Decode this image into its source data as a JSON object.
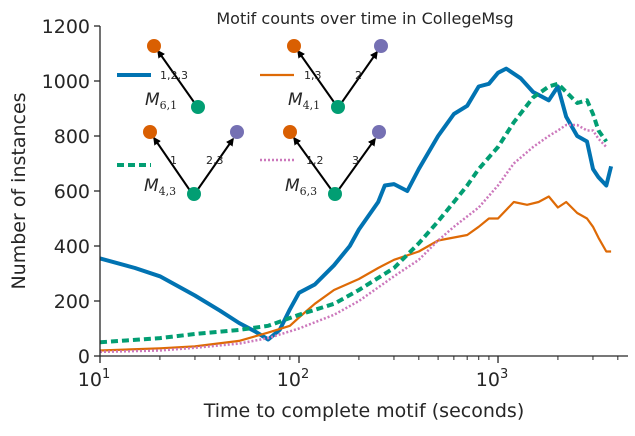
{
  "chart_data": {
    "type": "line",
    "title": "Motif counts over time in CollegeMsg",
    "xlabel": "Time to complete motif (seconds)",
    "ylabel": "Number of instances",
    "xscale": "log",
    "xlim": [
      10,
      4500
    ],
    "ylim": [
      0,
      1200
    ],
    "xticks": [
      {
        "value": 10,
        "base": "10",
        "exp": "1"
      },
      {
        "value": 100,
        "base": "10",
        "exp": "2"
      },
      {
        "value": 1000,
        "base": "10",
        "exp": "3"
      }
    ],
    "yticks": [
      "0",
      "200",
      "400",
      "600",
      "800",
      "1000",
      "1200"
    ],
    "grid": false,
    "legend": "upper-left, motif diagrams",
    "series": [
      {
        "name": "M6,1",
        "color": "#0173b2",
        "style": "solid",
        "width": 4,
        "x": [
          10,
          15,
          20,
          30,
          40,
          50,
          60,
          70,
          80,
          90,
          100,
          120,
          150,
          180,
          200,
          250,
          270,
          300,
          350,
          400,
          500,
          600,
          700,
          800,
          900,
          1000,
          1100,
          1300,
          1500,
          1800,
          2000,
          2200,
          2500,
          2800,
          3000,
          3200,
          3500,
          3700
        ],
        "y": [
          355,
          320,
          290,
          220,
          165,
          120,
          90,
          60,
          95,
          170,
          230,
          260,
          330,
          400,
          460,
          560,
          620,
          625,
          600,
          680,
          800,
          880,
          910,
          980,
          990,
          1030,
          1045,
          1010,
          960,
          930,
          980,
          870,
          800,
          780,
          680,
          650,
          620,
          690
        ]
      },
      {
        "name": "M4,1",
        "color": "#de6a06",
        "style": "solid",
        "width": 2.2,
        "x": [
          10,
          20,
          30,
          50,
          70,
          90,
          100,
          120,
          150,
          200,
          250,
          300,
          400,
          500,
          700,
          800,
          900,
          1000,
          1200,
          1400,
          1600,
          1800,
          2000,
          2200,
          2500,
          2800,
          3000,
          3200,
          3500,
          3700
        ],
        "y": [
          20,
          28,
          35,
          55,
          85,
          110,
          140,
          190,
          240,
          280,
          320,
          350,
          380,
          420,
          440,
          470,
          500,
          500,
          560,
          550,
          560,
          580,
          540,
          560,
          520,
          500,
          470,
          430,
          380,
          380
        ]
      },
      {
        "name": "M4,3",
        "color": "#029e73",
        "style": "dashed",
        "width": 4,
        "x": [
          10,
          20,
          30,
          50,
          70,
          100,
          150,
          200,
          300,
          400,
          500,
          600,
          700,
          800,
          1000,
          1200,
          1500,
          1800,
          2000,
          2200,
          2500,
          2800,
          3000,
          3200,
          3500
        ],
        "y": [
          50,
          65,
          80,
          95,
          110,
          150,
          190,
          240,
          320,
          410,
          490,
          560,
          620,
          680,
          760,
          850,
          940,
          980,
          990,
          960,
          920,
          930,
          880,
          820,
          780
        ]
      },
      {
        "name": "M6,3",
        "color": "#cc78bc",
        "style": "dotted",
        "width": 2.5,
        "x": [
          10,
          20,
          30,
          50,
          70,
          100,
          150,
          200,
          300,
          400,
          500,
          600,
          800,
          1000,
          1200,
          1500,
          1800,
          2000,
          2200,
          2500,
          2800,
          3000,
          3200,
          3500
        ],
        "y": [
          15,
          20,
          30,
          45,
          65,
          100,
          150,
          200,
          290,
          350,
          420,
          470,
          540,
          620,
          700,
          760,
          800,
          820,
          840,
          840,
          820,
          820,
          790,
          760
        ]
      }
    ]
  },
  "legend_entries": [
    {
      "key": "m61",
      "name": "M",
      "sub": "6,1",
      "labels": [
        "1,2,3"
      ]
    },
    {
      "key": "m41",
      "name": "M",
      "sub": "4,1",
      "labels": [
        "1,3",
        "2"
      ]
    },
    {
      "key": "m43",
      "name": "M",
      "sub": "4,3",
      "labels": [
        "1",
        "2,3"
      ]
    },
    {
      "key": "m63",
      "name": "M",
      "sub": "6,3",
      "labels": [
        "1,2",
        "3"
      ]
    }
  ],
  "node_colors": {
    "a": "#d95f02",
    "b": "#029e73",
    "c": "#7570b3"
  }
}
